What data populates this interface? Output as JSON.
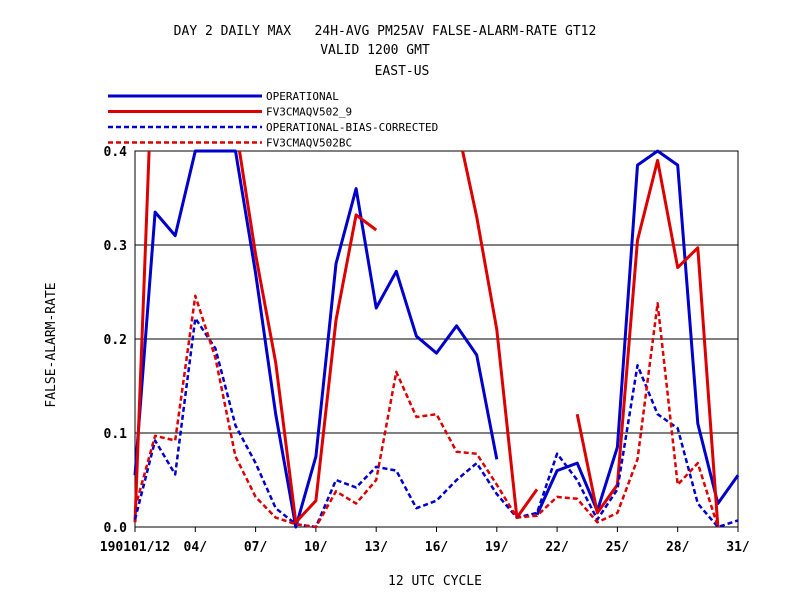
{
  "header": {
    "title_line1": "DAY 2 DAILY MAX   24H-AVG PM25AV FALSE-ALARM-RATE GT12",
    "title_line2": "VALID 1200 GMT",
    "title_line3": "EAST-US"
  },
  "chart_data": {
    "type": "line",
    "xlabel": "12 UTC CYCLE",
    "ylabel": "FALSE-ALARM-RATE",
    "xlim": [
      1,
      31
    ],
    "ylim": [
      0.0,
      0.4
    ],
    "yticks": [
      0.0,
      0.1,
      0.2,
      0.3,
      0.4
    ],
    "ytick_labels": [
      "0.0",
      "0.1",
      "0.2",
      "0.3",
      "0.4"
    ],
    "xticks": [
      1,
      4,
      7,
      10,
      13,
      16,
      19,
      22,
      25,
      28,
      31
    ],
    "xtick_labels": [
      "190101/12",
      "04/",
      "07/",
      "10/",
      "13/",
      "16/",
      "19/",
      "22/",
      "25/",
      "28/",
      "31/"
    ],
    "grid": "horizontal",
    "legend_position": "top-left",
    "series": [
      {
        "name": "OPERATIONAL",
        "color": "#0000cc",
        "dash": "solid",
        "segments": [
          [
            [
              1,
              0.055
            ],
            [
              2,
              0.335
            ],
            [
              3,
              0.31
            ],
            [
              4,
              0.4
            ],
            [
              5,
              0.4
            ],
            [
              6,
              0.4
            ],
            [
              7,
              0.27
            ],
            [
              8,
              0.12
            ],
            [
              9,
              0.0
            ],
            [
              10,
              0.075
            ],
            [
              11,
              0.28
            ],
            [
              12,
              0.36
            ],
            [
              13,
              0.233
            ],
            [
              14,
              0.272
            ],
            [
              15,
              0.203
            ],
            [
              16,
              0.185
            ],
            [
              17,
              0.214
            ],
            [
              18,
              0.183
            ],
            [
              19,
              0.072
            ]
          ],
          [
            [
              21,
              0.013
            ],
            [
              22,
              0.06
            ],
            [
              23,
              0.068
            ],
            [
              24,
              0.017
            ],
            [
              25,
              0.085
            ],
            [
              26,
              0.385
            ],
            [
              27,
              0.4
            ],
            [
              28,
              0.385
            ],
            [
              29,
              0.11
            ],
            [
              30,
              0.025
            ],
            [
              31,
              0.055
            ]
          ]
        ]
      },
      {
        "name": "FV3CMAQV502_9",
        "color": "#dd0000",
        "dash": "solid",
        "segments": [
          [
            [
              1,
              0.005
            ],
            [
              1.7,
              0.4
            ]
          ],
          [
            [
              6.2,
              0.4
            ],
            [
              7,
              0.29
            ],
            [
              8,
              0.175
            ],
            [
              9,
              0.005
            ],
            [
              10,
              0.028
            ],
            [
              11,
              0.22
            ],
            [
              12,
              0.332
            ],
            [
              13,
              0.316
            ]
          ],
          [
            [
              17.3,
              0.4
            ],
            [
              18,
              0.33
            ],
            [
              19,
              0.21
            ],
            [
              20,
              0.01
            ],
            [
              21,
              0.04
            ]
          ],
          [
            [
              23,
              0.12
            ],
            [
              24,
              0.015
            ],
            [
              25,
              0.045
            ],
            [
              26,
              0.305
            ],
            [
              27,
              0.39
            ],
            [
              28,
              0.276
            ],
            [
              29,
              0.297
            ],
            [
              30,
              0.0
            ]
          ]
        ]
      },
      {
        "name": "OPERATIONAL-BIAS-CORRECTED",
        "color": "#0000cc",
        "dash": "dashed",
        "segments": [
          [
            [
              1,
              0.008
            ],
            [
              2,
              0.092
            ],
            [
              3,
              0.056
            ],
            [
              4,
              0.222
            ],
            [
              5,
              0.19
            ],
            [
              6,
              0.108
            ],
            [
              7,
              0.068
            ],
            [
              8,
              0.02
            ],
            [
              9,
              0.003
            ],
            [
              10,
              0.0
            ],
            [
              11,
              0.05
            ],
            [
              12,
              0.042
            ],
            [
              13,
              0.064
            ],
            [
              14,
              0.06
            ],
            [
              15,
              0.02
            ],
            [
              16,
              0.028
            ],
            [
              17,
              0.05
            ],
            [
              18,
              0.068
            ],
            [
              19,
              0.035
            ],
            [
              20,
              0.01
            ],
            [
              21,
              0.015
            ],
            [
              22,
              0.078
            ],
            [
              23,
              0.05
            ],
            [
              24,
              0.008
            ],
            [
              25,
              0.04
            ],
            [
              26,
              0.172
            ],
            [
              27,
              0.12
            ],
            [
              28,
              0.105
            ],
            [
              29,
              0.025
            ],
            [
              30,
              0.0
            ],
            [
              31,
              0.007
            ]
          ]
        ]
      },
      {
        "name": "FV3CMAQV502BC",
        "color": "#dd0000",
        "dash": "dashed",
        "segments": [
          [
            [
              1,
              0.02
            ],
            [
              2,
              0.097
            ],
            [
              3,
              0.092
            ],
            [
              4,
              0.246
            ],
            [
              5,
              0.18
            ],
            [
              6,
              0.075
            ],
            [
              7,
              0.032
            ],
            [
              8,
              0.01
            ],
            [
              9,
              0.003
            ],
            [
              10,
              0.0
            ],
            [
              11,
              0.038
            ],
            [
              12,
              0.025
            ],
            [
              13,
              0.05
            ],
            [
              14,
              0.165
            ],
            [
              15,
              0.117
            ],
            [
              16,
              0.12
            ],
            [
              17,
              0.08
            ],
            [
              18,
              0.078
            ],
            [
              19,
              0.045
            ],
            [
              20,
              0.01
            ],
            [
              21,
              0.012
            ],
            [
              22,
              0.032
            ],
            [
              23,
              0.03
            ],
            [
              24,
              0.005
            ],
            [
              25,
              0.015
            ],
            [
              26,
              0.072
            ],
            [
              27,
              0.238
            ],
            [
              28,
              0.045
            ],
            [
              29,
              0.068
            ],
            [
              30,
              0.0
            ]
          ]
        ]
      }
    ]
  }
}
